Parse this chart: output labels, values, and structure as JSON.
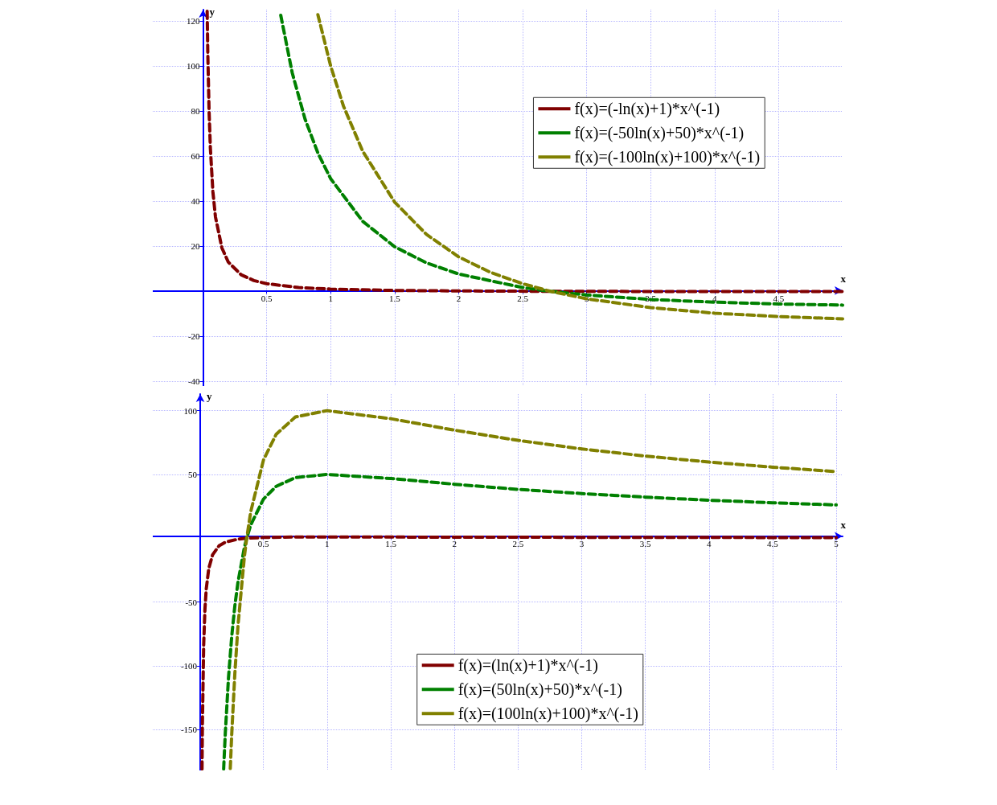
{
  "chart_data": [
    {
      "type": "line",
      "xlabel": "x",
      "ylabel": "y",
      "xlim": [
        -0.39,
        5
      ],
      "ylim": [
        -42,
        125
      ],
      "xticks": [
        0.5,
        1,
        1.5,
        2,
        2.5,
        3,
        3.5,
        4,
        4.5
      ],
      "yticks": [
        -40,
        -20,
        20,
        40,
        60,
        80,
        100,
        120
      ],
      "grid": true,
      "legend": "top right",
      "marker": "none",
      "line_style": "dashed",
      "series": [
        {
          "name": "f(x)=(-ln(x)+1)*x^(-1)",
          "color": "#800000",
          "x": [
            0.035,
            0.04,
            0.05,
            0.06,
            0.08,
            0.1,
            0.15,
            0.2,
            0.3,
            0.4,
            0.5,
            0.75,
            1,
            1.5,
            2,
            2.718,
            3,
            4,
            5
          ],
          "values": [
            124.3,
            105.5,
            79.9,
            63.6,
            44.1,
            33.0,
            19.3,
            13.0,
            7.4,
            4.8,
            3.4,
            1.7,
            1,
            0.4,
            0.2,
            0,
            0,
            -0.1,
            -0.1
          ]
        },
        {
          "name": "f(x)=(-50ln(x)+50)*x^(-1)",
          "color": "#008000",
          "x": [
            0.61,
            0.7,
            0.8,
            0.9,
            1,
            1.25,
            1.5,
            1.75,
            2,
            2.5,
            2.718,
            3,
            3.5,
            4,
            4.5,
            5
          ],
          "values": [
            122.5,
            96.9,
            76.4,
            61.4,
            50,
            31.1,
            19.8,
            12.6,
            7.7,
            1.7,
            0,
            -1.6,
            -3.6,
            -4.8,
            -5.6,
            -6.1
          ]
        },
        {
          "name": "f(x)=(-100ln(x)+100)*x^(-1)",
          "color": "#808000",
          "x": [
            0.9,
            1,
            1.1,
            1.25,
            1.5,
            1.75,
            2,
            2.25,
            2.5,
            2.718,
            3,
            3.5,
            4,
            4.5,
            5
          ],
          "values": [
            122.8,
            100,
            82.2,
            62.2,
            39.6,
            25.2,
            15.3,
            8.4,
            3.4,
            0,
            -3.3,
            -7.2,
            -9.7,
            -11.2,
            -12.2
          ]
        }
      ]
    },
    {
      "type": "line",
      "xlabel": "x",
      "ylabel": "y",
      "xlim": [
        -0.37,
        5.05
      ],
      "ylim": [
        -182,
        113
      ],
      "xticks": [
        0.5,
        1,
        1.5,
        2,
        2.5,
        3,
        3.5,
        4,
        4.5,
        5
      ],
      "yticks": [
        -150,
        -100,
        -50,
        50,
        100
      ],
      "grid": true,
      "legend": "bottom",
      "marker": "none",
      "line_style": "dashed",
      "series": [
        {
          "name": "f(x)=(ln(x)+1)*x^(-1)",
          "color": "#800000",
          "x": [
            0.017,
            0.02,
            0.03,
            0.04,
            0.05,
            0.07,
            0.1,
            0.15,
            0.2,
            0.3,
            0.368,
            0.5,
            0.75,
            1,
            1.5,
            2,
            3,
            4,
            5
          ],
          "values": [
            -180.9,
            -145.6,
            -83.6,
            -55.5,
            -39.9,
            -23.7,
            -13.0,
            -6.0,
            -3.1,
            -0.7,
            0,
            0.6,
            1.0,
            1,
            0.9,
            0.8,
            0.7,
            0.6,
            0.5
          ]
        },
        {
          "name": "f(x)=(50ln(x)+50)*x^(-1)",
          "color": "#008000",
          "x": [
            0.187,
            0.19,
            0.2,
            0.225,
            0.25,
            0.275,
            0.3,
            0.35,
            0.368,
            0.4,
            0.5,
            0.6,
            0.75,
            1,
            1.5,
            2,
            2.5,
            3,
            3.5,
            4,
            4.5,
            5
          ],
          "values": [
            -180.9,
            -173.9,
            -152.6,
            -109.3,
            -77.3,
            -52.9,
            -34.0,
            -7.1,
            0,
            10.5,
            30.7,
            40.7,
            47.5,
            50,
            46.8,
            42.3,
            38.3,
            35.0,
            32.2,
            29.8,
            27.8,
            26.1
          ]
        },
        {
          "name": "f(x)=(100ln(x)+100)*x^(-1)",
          "color": "#808000",
          "x": [
            0.239,
            0.25,
            0.275,
            0.3,
            0.35,
            0.368,
            0.4,
            0.5,
            0.6,
            0.75,
            1,
            1.5,
            2,
            2.5,
            3,
            3.5,
            4,
            4.5,
            5
          ],
          "values": [
            -180.5,
            -154.5,
            -105.8,
            -68.0,
            -14.2,
            0,
            20.9,
            61.4,
            81.5,
            95.0,
            100,
            93.7,
            84.7,
            76.7,
            70.0,
            64.4,
            59.7,
            55.7,
            52.2
          ]
        }
      ]
    }
  ]
}
